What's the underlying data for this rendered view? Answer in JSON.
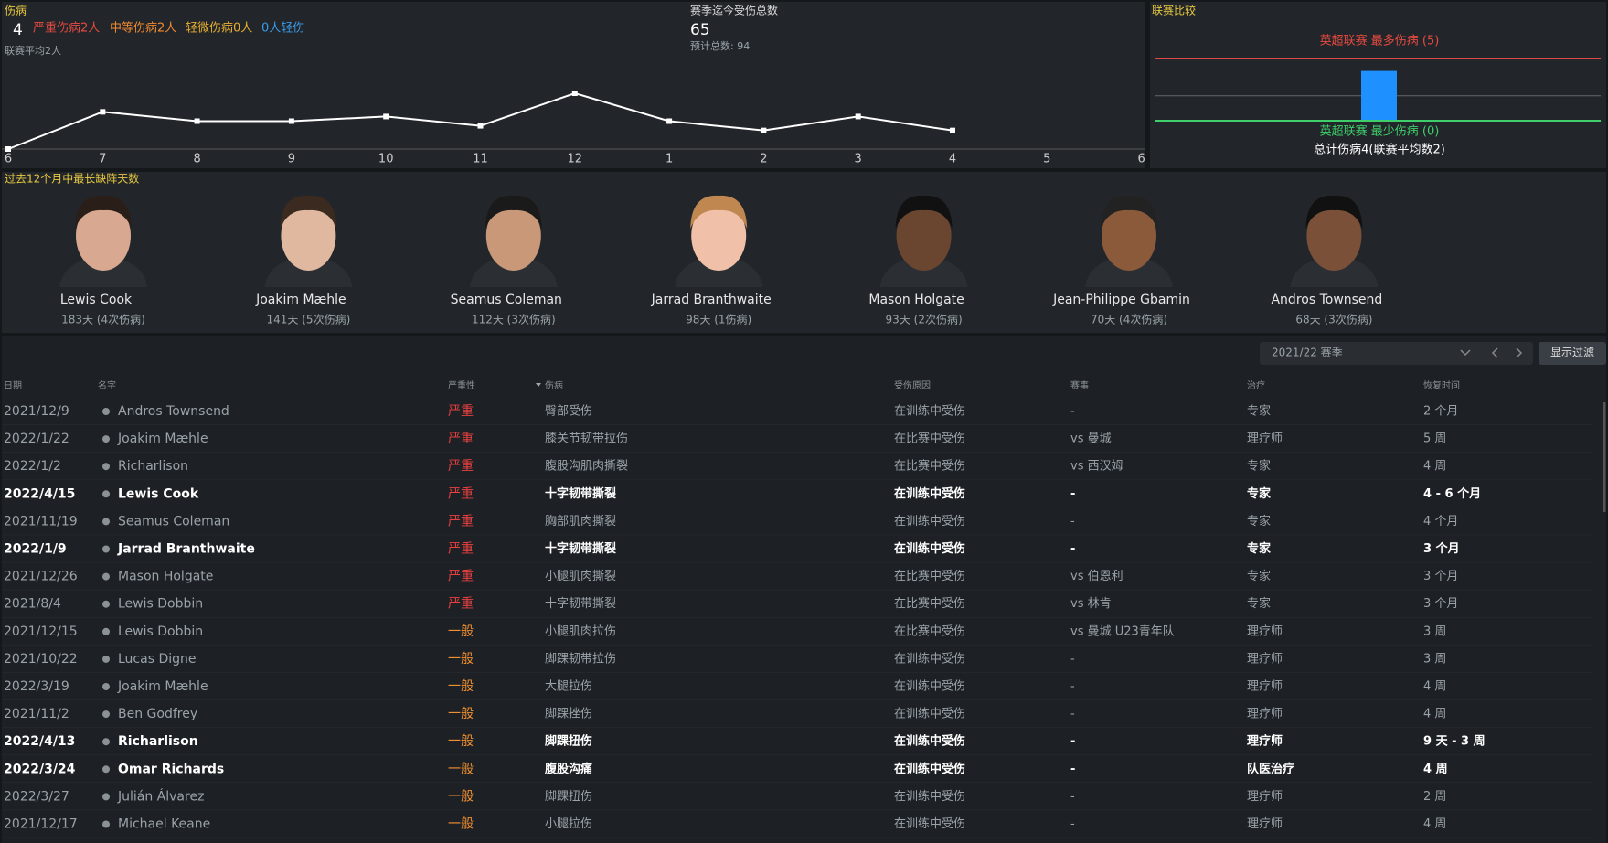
{
  "header": {
    "title": "伤病",
    "count": 4,
    "severe": "严重伤病2人",
    "moderate": "中等伤病2人",
    "minor": "轻微伤病0人",
    "light": "0人轻伤",
    "league_avg": "联赛平均2人"
  },
  "season_total": {
    "title": "赛季迄今受伤总数",
    "value": 65,
    "projected": "预计总数: 94"
  },
  "chart_data": {
    "type": "line",
    "categories": [
      "6",
      "7",
      "8",
      "9",
      "10",
      "11",
      "12",
      "1",
      "2",
      "3",
      "4",
      "5",
      "6"
    ],
    "values": [
      0,
      8,
      6,
      6,
      7,
      5,
      12,
      6,
      4,
      7,
      4,
      null,
      null
    ],
    "color": "#ffffff"
  },
  "comparison": {
    "title": "联赛比较",
    "max_label": "英超联赛 最多伤病 (5)",
    "max": 5,
    "min_label": "英超联赛 最少伤病 (0)",
    "min": 0,
    "average": 2,
    "team": 4,
    "summary": "总计伤病4(联赛平均数2)",
    "team_color": "#1e90ff"
  },
  "players": {
    "title": "过去12个月中最长缺阵天数",
    "items": [
      {
        "name": "Lewis Cook",
        "detail": "183天 (4次伤病)"
      },
      {
        "name": "Joakim Mæhle",
        "detail": "141天 (5次伤病)"
      },
      {
        "name": "Seamus Coleman",
        "detail": "112天 (3次伤病)"
      },
      {
        "name": "Jarrad Branthwaite",
        "detail": "98天 (1伤病)"
      },
      {
        "name": "Mason Holgate",
        "detail": "93天 (2次伤病)"
      },
      {
        "name": "Jean-Philippe Gbamin",
        "detail": "70天 (4次伤病)"
      },
      {
        "name": "Andros Townsend",
        "detail": "68天 (3次伤病)"
      }
    ]
  },
  "filter": {
    "season": "2021/22 赛季",
    "button": "显示过滤"
  },
  "table": {
    "columns": [
      "日期",
      "名字",
      "严重性",
      "伤病",
      "受伤原因",
      "赛事",
      "治疗",
      "恢复时间"
    ],
    "rows": [
      [
        "2021/12/9",
        "Andros Townsend",
        "严重",
        "臀部受伤",
        "在训练中受伤",
        "-",
        "专家",
        "2 个月"
      ],
      [
        "2022/1/22",
        "Joakim Mæhle",
        "严重",
        "膝关节韧带拉伤",
        "在比赛中受伤",
        "vs 曼城",
        "理疗师",
        "5 周"
      ],
      [
        "2022/1/2",
        "Richarlison",
        "严重",
        "腹股沟肌肉撕裂",
        "在比赛中受伤",
        "vs 西汉姆",
        "专家",
        "4 周"
      ],
      [
        "2022/4/15",
        "Lewis Cook",
        "严重",
        "十字韧带撕裂",
        "在训练中受伤",
        "-",
        "专家",
        "4 - 6 个月"
      ],
      [
        "2021/11/19",
        "Seamus Coleman",
        "严重",
        "胸部肌肉撕裂",
        "在训练中受伤",
        "-",
        "专家",
        "4 个月"
      ],
      [
        "2022/1/9",
        "Jarrad Branthwaite",
        "严重",
        "十字韧带撕裂",
        "在训练中受伤",
        "-",
        "专家",
        "3 个月"
      ],
      [
        "2021/12/26",
        "Mason Holgate",
        "严重",
        "小腿肌肉撕裂",
        "在比赛中受伤",
        "vs 伯恩利",
        "专家",
        "3 个月"
      ],
      [
        "2021/8/4",
        "Lewis Dobbin",
        "严重",
        "十字韧带撕裂",
        "在比赛中受伤",
        "vs 林肯",
        "专家",
        "3 个月"
      ],
      [
        "2021/12/15",
        "Lewis Dobbin",
        "一般",
        "小腿肌肉拉伤",
        "在比赛中受伤",
        "vs 曼城 U23青年队",
        "理疗师",
        "3 周"
      ],
      [
        "2021/10/22",
        "Lucas Digne",
        "一般",
        "脚踝韧带拉伤",
        "在训练中受伤",
        "-",
        "理疗师",
        "3 周"
      ],
      [
        "2022/3/19",
        "Joakim Mæhle",
        "一般",
        "大腿拉伤",
        "在训练中受伤",
        "-",
        "理疗师",
        "4 周"
      ],
      [
        "2021/11/2",
        "Ben Godfrey",
        "一般",
        "脚踝挫伤",
        "在训练中受伤",
        "-",
        "理疗师",
        "4 周"
      ],
      [
        "2022/4/13",
        "Richarlison",
        "一般",
        "脚踝扭伤",
        "在训练中受伤",
        "-",
        "理疗师",
        "9 天 - 3 周"
      ],
      [
        "2022/3/24",
        "Omar Richards",
        "一般",
        "腹股沟痛",
        "在训练中受伤",
        "-",
        "队医治疗",
        "4 周"
      ],
      [
        "2022/3/27",
        "Julián Álvarez",
        "一般",
        "脚踝扭伤",
        "在训练中受伤",
        "-",
        "理疗师",
        "2 周"
      ],
      [
        "2021/12/17",
        "Michael Keane",
        "一般",
        "小腿拉伤",
        "在训练中受伤",
        "-",
        "理疗师",
        "4 周"
      ]
    ],
    "highlight": [
      false,
      false,
      false,
      true,
      false,
      true,
      false,
      false,
      false,
      false,
      false,
      false,
      true,
      true,
      false,
      false
    ]
  }
}
